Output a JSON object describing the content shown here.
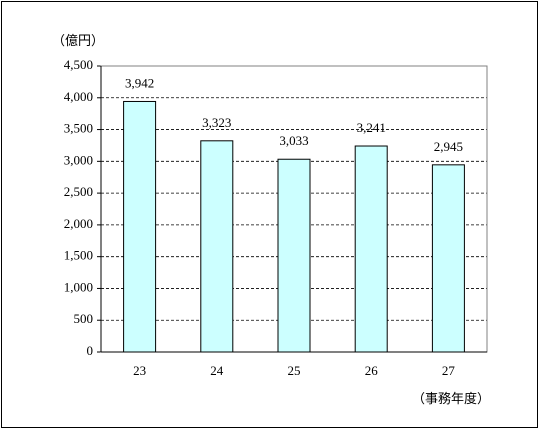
{
  "chart_data": {
    "type": "bar",
    "y_label": "（億円）",
    "x_label": "（事務年度）",
    "categories": [
      "23",
      "24",
      "25",
      "26",
      "27"
    ],
    "values": [
      3942,
      3323,
      3033,
      3241,
      2945
    ],
    "value_labels": [
      "3,942",
      "3,323",
      "3,033",
      "3,241",
      "2,945"
    ],
    "color": "#ccffff",
    "ylim": [
      0,
      4500
    ],
    "yticks": [
      0,
      500,
      {
        "value": 1000,
        "label": "1,000"
      },
      {
        "value": 1500,
        "label": "1,500"
      },
      {
        "value": 2000,
        "label": "2,000"
      },
      {
        "value": 2500,
        "label": "2,500"
      },
      {
        "value": 3000,
        "label": "3,000"
      },
      {
        "value": 3500,
        "label": "3,500"
      },
      {
        "value": 4000,
        "label": "4,000"
      },
      {
        "value": 4500,
        "label": "4,500"
      }
    ],
    "grid": true
  }
}
